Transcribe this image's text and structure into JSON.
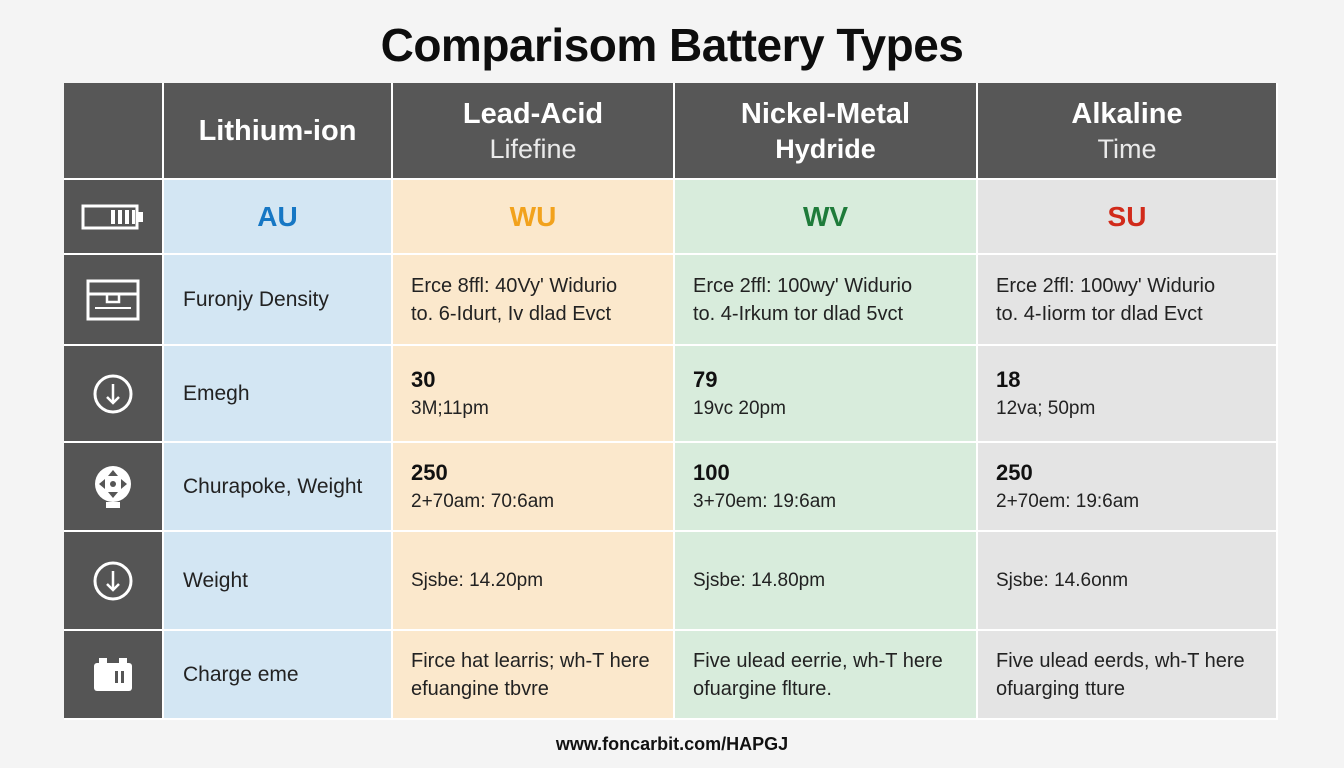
{
  "title": "Comparisom Battery Types",
  "columns": [
    {
      "line1": "Lithium-ion",
      "line2": ""
    },
    {
      "line1": "Lead-Acid",
      "line2": "Lifefine"
    },
    {
      "line1": "Nickel-Metal",
      "line2": "Hydride"
    },
    {
      "line1": "Alkaline",
      "line2": "Time"
    }
  ],
  "codes": [
    {
      "text": "AU",
      "color": "#1677c4"
    },
    {
      "text": "WU",
      "color": "#f2a21c"
    },
    {
      "text": "WV",
      "color": "#1e7b3a"
    },
    {
      "text": "SU",
      "color": "#d12a1a"
    }
  ],
  "rows": [
    {
      "icon": "battery-icon",
      "label": "",
      "is_code_row": true
    },
    {
      "icon": "box-icon",
      "label": "Furonjy Density",
      "cells": [
        {
          "line1": "Erce 8ffl: 40Vy' Widurio",
          "line2": "to. 6-Idurt, Iv dlad Evct"
        },
        {
          "line1": "Erce 2ffl: 100wy' Widurio",
          "line2": "to. 4-Irkum tor dlad 5vct"
        },
        {
          "line1": "Erce 2ffl: 100wy' Widurio",
          "line2": "to. 4-Iiorm tor dlad Evct"
        }
      ]
    },
    {
      "icon": "arrow-down-circle-icon",
      "label": "Emegh",
      "cells": [
        {
          "num": "30",
          "sub": "3M;11pm"
        },
        {
          "num": "79",
          "sub": "19vc 20pm"
        },
        {
          "num": "18",
          "sub": "12va; 50pm"
        }
      ]
    },
    {
      "icon": "move-arrows-icon",
      "label": "Churapoke, Weight",
      "cells": [
        {
          "num": "250",
          "sub": "2+70am: 70:6am"
        },
        {
          "num": "100",
          "sub": "3+70em: 19:6am"
        },
        {
          "num": "250",
          "sub": "2+70em: 19:6am"
        }
      ]
    },
    {
      "icon": "arrow-down-circle-icon",
      "label": "Weight",
      "cells": [
        {
          "sub": "Sjsbe: 14.20pm"
        },
        {
          "sub": "Sjsbe: 14.80pm"
        },
        {
          "sub": "Sjsbe: 14.6onm"
        }
      ]
    },
    {
      "icon": "car-battery-icon",
      "label": "Charge eme",
      "cells": [
        {
          "line1": "Firce hat learris; wh-T here",
          "line2": "efuangine tbvre"
        },
        {
          "line1": "Five ulead eerrie, wh-T here",
          "line2": "ofuargine flture."
        },
        {
          "line1": "Five ulead eerds, wh-T here",
          "line2": "ofuarging tture"
        }
      ]
    }
  ],
  "footer": "www.foncarbit.com/HAPGJ"
}
